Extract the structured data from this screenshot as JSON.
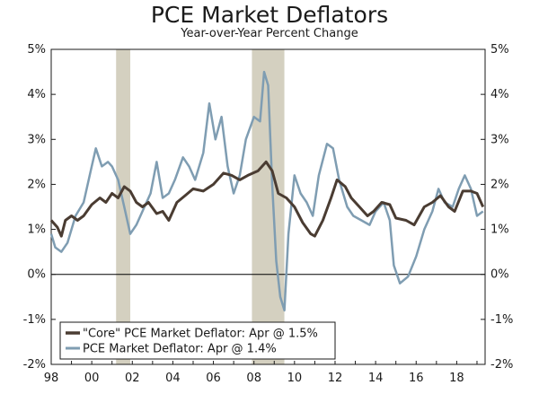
{
  "chart_data": {
    "type": "line",
    "title": "PCE Market Deflators",
    "subtitle": "Year-over-Year Percent Change",
    "xlabel": "",
    "ylabel": "",
    "xlim": [
      1998.0,
      2019.4
    ],
    "ylim": [
      -2,
      5
    ],
    "y_ticks": [
      5,
      4,
      3,
      2,
      1,
      0,
      -1,
      -2
    ],
    "y_tick_labels": [
      "5%",
      "4%",
      "3%",
      "2%",
      "1%",
      "0%",
      "-1%",
      "-2%"
    ],
    "x_ticks": [
      1998,
      2000,
      2002,
      2004,
      2006,
      2008,
      2010,
      2012,
      2014,
      2016,
      2018
    ],
    "x_tick_labels": [
      "98",
      "00",
      "02",
      "04",
      "06",
      "08",
      "10",
      "12",
      "14",
      "16",
      "18"
    ],
    "recessions": [
      [
        2001.2,
        2001.9
      ],
      [
        2007.9,
        2009.5
      ]
    ],
    "grid": false,
    "legend_position": "bottom-left",
    "colors": {
      "core": "#4a3c32",
      "pce": "#7f9db2",
      "recession": "#d4d0c0",
      "zero_line": "#000000"
    },
    "series": [
      {
        "name": "\"Core\" PCE Market Deflator: Apr @ 1.5%",
        "points": [
          [
            1998.0,
            1.2
          ],
          [
            1998.3,
            1.05
          ],
          [
            1998.5,
            0.85
          ],
          [
            1998.7,
            1.2
          ],
          [
            1999.0,
            1.3
          ],
          [
            1999.3,
            1.2
          ],
          [
            1999.6,
            1.3
          ],
          [
            2000.0,
            1.55
          ],
          [
            2000.4,
            1.7
          ],
          [
            2000.7,
            1.6
          ],
          [
            2001.0,
            1.8
          ],
          [
            2001.3,
            1.7
          ],
          [
            2001.6,
            1.95
          ],
          [
            2001.9,
            1.85
          ],
          [
            2002.2,
            1.6
          ],
          [
            2002.5,
            1.5
          ],
          [
            2002.8,
            1.6
          ],
          [
            2003.2,
            1.35
          ],
          [
            2003.5,
            1.4
          ],
          [
            2003.8,
            1.2
          ],
          [
            2004.2,
            1.6
          ],
          [
            2004.6,
            1.75
          ],
          [
            2005.0,
            1.9
          ],
          [
            2005.5,
            1.85
          ],
          [
            2006.0,
            2.0
          ],
          [
            2006.5,
            2.25
          ],
          [
            2006.9,
            2.2
          ],
          [
            2007.3,
            2.1
          ],
          [
            2007.7,
            2.2
          ],
          [
            2008.2,
            2.3
          ],
          [
            2008.6,
            2.5
          ],
          [
            2008.9,
            2.3
          ],
          [
            2009.2,
            1.8
          ],
          [
            2009.6,
            1.7
          ],
          [
            2010.0,
            1.5
          ],
          [
            2010.4,
            1.15
          ],
          [
            2010.8,
            0.9
          ],
          [
            2011.0,
            0.85
          ],
          [
            2011.4,
            1.2
          ],
          [
            2011.8,
            1.7
          ],
          [
            2012.1,
            2.1
          ],
          [
            2012.5,
            1.95
          ],
          [
            2012.8,
            1.7
          ],
          [
            2013.2,
            1.5
          ],
          [
            2013.6,
            1.3
          ],
          [
            2013.9,
            1.4
          ],
          [
            2014.3,
            1.6
          ],
          [
            2014.7,
            1.55
          ],
          [
            2015.0,
            1.25
          ],
          [
            2015.5,
            1.2
          ],
          [
            2015.9,
            1.1
          ],
          [
            2016.4,
            1.5
          ],
          [
            2016.8,
            1.6
          ],
          [
            2017.2,
            1.75
          ],
          [
            2017.6,
            1.5
          ],
          [
            2017.9,
            1.4
          ],
          [
            2018.3,
            1.85
          ],
          [
            2018.7,
            1.85
          ],
          [
            2019.0,
            1.8
          ],
          [
            2019.3,
            1.5
          ]
        ]
      },
      {
        "name": "PCE Market Deflator: Apr @ 1.4%",
        "points": [
          [
            1998.0,
            0.9
          ],
          [
            1998.2,
            0.6
          ],
          [
            1998.5,
            0.5
          ],
          [
            1998.8,
            0.7
          ],
          [
            1999.2,
            1.3
          ],
          [
            1999.6,
            1.6
          ],
          [
            2000.0,
            2.4
          ],
          [
            2000.2,
            2.8
          ],
          [
            2000.5,
            2.4
          ],
          [
            2000.8,
            2.5
          ],
          [
            2001.0,
            2.4
          ],
          [
            2001.3,
            2.1
          ],
          [
            2001.6,
            1.5
          ],
          [
            2001.9,
            0.9
          ],
          [
            2002.2,
            1.1
          ],
          [
            2002.6,
            1.5
          ],
          [
            2002.9,
            1.8
          ],
          [
            2003.2,
            2.5
          ],
          [
            2003.5,
            1.7
          ],
          [
            2003.8,
            1.8
          ],
          [
            2004.1,
            2.1
          ],
          [
            2004.5,
            2.6
          ],
          [
            2004.8,
            2.4
          ],
          [
            2005.1,
            2.1
          ],
          [
            2005.5,
            2.7
          ],
          [
            2005.8,
            3.8
          ],
          [
            2006.1,
            3.0
          ],
          [
            2006.4,
            3.5
          ],
          [
            2006.7,
            2.4
          ],
          [
            2007.0,
            1.8
          ],
          [
            2007.3,
            2.2
          ],
          [
            2007.6,
            3.0
          ],
          [
            2008.0,
            3.5
          ],
          [
            2008.3,
            3.4
          ],
          [
            2008.5,
            4.5
          ],
          [
            2008.7,
            4.2
          ],
          [
            2008.9,
            2.0
          ],
          [
            2009.1,
            0.3
          ],
          [
            2009.3,
            -0.5
          ],
          [
            2009.5,
            -0.8
          ],
          [
            2009.7,
            0.9
          ],
          [
            2010.0,
            2.2
          ],
          [
            2010.3,
            1.8
          ],
          [
            2010.6,
            1.6
          ],
          [
            2010.9,
            1.3
          ],
          [
            2011.2,
            2.2
          ],
          [
            2011.6,
            2.9
          ],
          [
            2011.9,
            2.8
          ],
          [
            2012.2,
            2.1
          ],
          [
            2012.6,
            1.5
          ],
          [
            2012.9,
            1.3
          ],
          [
            2013.3,
            1.2
          ],
          [
            2013.7,
            1.1
          ],
          [
            2014.0,
            1.4
          ],
          [
            2014.4,
            1.6
          ],
          [
            2014.7,
            1.2
          ],
          [
            2014.9,
            0.2
          ],
          [
            2015.2,
            -0.2
          ],
          [
            2015.6,
            -0.05
          ],
          [
            2016.0,
            0.4
          ],
          [
            2016.4,
            1.0
          ],
          [
            2016.8,
            1.4
          ],
          [
            2017.1,
            1.9
          ],
          [
            2017.4,
            1.6
          ],
          [
            2017.8,
            1.5
          ],
          [
            2018.1,
            1.9
          ],
          [
            2018.4,
            2.2
          ],
          [
            2018.7,
            1.9
          ],
          [
            2019.0,
            1.3
          ],
          [
            2019.3,
            1.4
          ]
        ]
      }
    ]
  }
}
